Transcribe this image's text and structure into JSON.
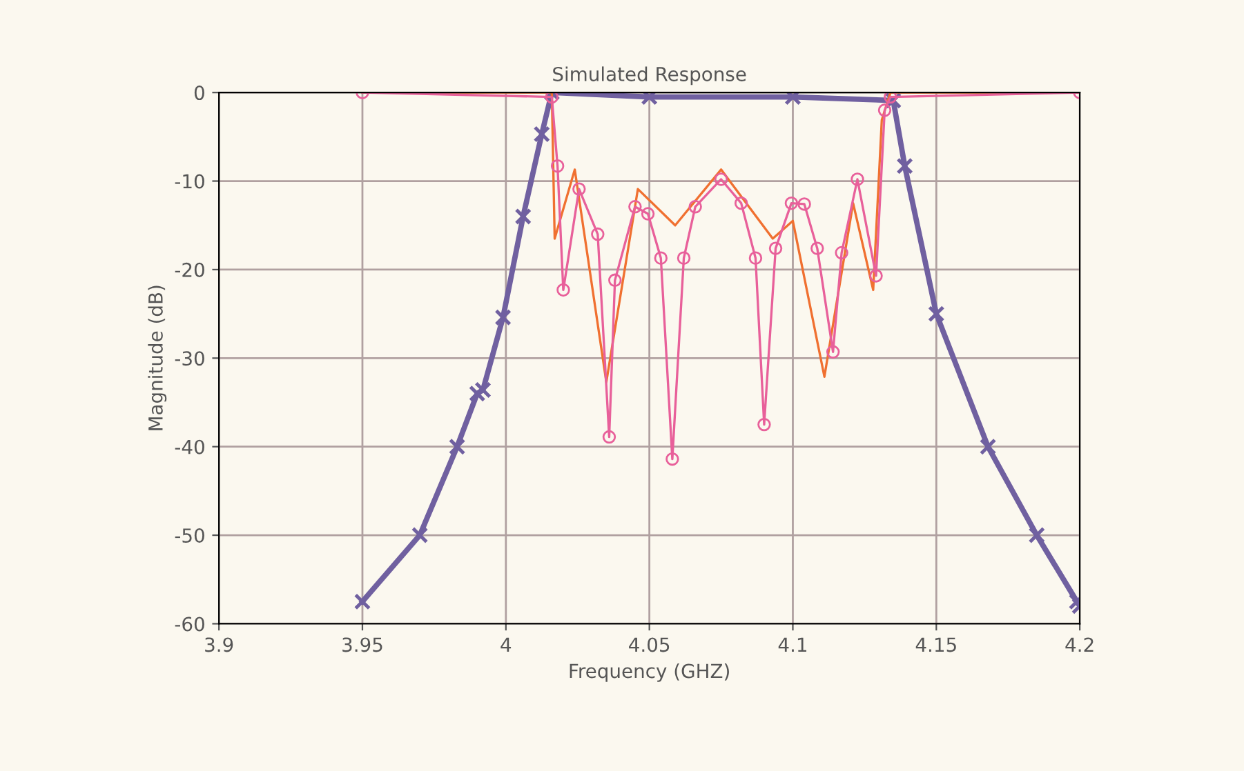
{
  "chart_data": {
    "type": "line",
    "title": "Simulated Response",
    "xlabel": "Frequency (GHZ)",
    "ylabel": "Magnitude (dB)",
    "xlim": [
      3.9,
      4.2
    ],
    "xticks": [
      3.9,
      3.95,
      4,
      4.05,
      4.1,
      4.15,
      4.2
    ],
    "ylim": [
      -60,
      0
    ],
    "yticks": [
      0,
      -10,
      -20,
      -30,
      -40,
      -50,
      -60
    ],
    "grid": true,
    "series": [
      {
        "color": "#7060a0",
        "marker": "cross",
        "x": [
          3.95,
          3.97,
          3.983,
          3.99,
          3.992,
          3.999,
          4.006,
          4.0125,
          4.016,
          4.05,
          4.1,
          4.135,
          4.139,
          4.15,
          4.168,
          4.185,
          4.199,
          4.2
        ],
        "values": [
          -57.5,
          -50,
          -40,
          -34,
          -33.6,
          -25.4,
          -14,
          -4.7,
          0,
          -0.5,
          -0.5,
          -0.9,
          -8.3,
          -25,
          -40,
          -50,
          -57.5,
          -58
        ]
      },
      {
        "color": "#f07030",
        "marker": "none",
        "x": [
          3.95,
          4.016,
          4.017,
          4.024,
          4.035,
          4.046,
          4.059,
          4.075,
          4.093,
          4.1,
          4.111,
          4.121,
          4.128,
          4.131,
          4.134,
          4.2
        ],
        "values": [
          0,
          0,
          -16.5,
          -8.7,
          -32.7,
          -10.9,
          -15,
          -8.7,
          -16.5,
          -14.5,
          -32.1,
          -12.5,
          -22.3,
          -3.1,
          0,
          0
        ]
      },
      {
        "color": "#e8609a",
        "marker": "circle",
        "x": [
          3.95,
          4.016,
          4.018,
          4.02,
          4.0255,
          4.032,
          4.036,
          4.038,
          4.045,
          4.0495,
          4.054,
          4.058,
          4.062,
          4.066,
          4.075,
          4.082,
          4.087,
          4.09,
          4.094,
          4.0995,
          4.104,
          4.1085,
          4.114,
          4.117,
          4.1225,
          4.129,
          4.132,
          4.134,
          4.2
        ],
        "values": [
          0,
          -0.5,
          -8.3,
          -22.3,
          -10.9,
          -16,
          -38.9,
          -21.2,
          -12.9,
          -13.7,
          -18.7,
          -41.4,
          -18.7,
          -12.9,
          -9.8,
          -12.5,
          -18.7,
          -37.5,
          -17.6,
          -12.5,
          -12.6,
          -17.6,
          -29.3,
          -18.1,
          -9.8,
          -20.7,
          -2,
          -0.5,
          0
        ]
      }
    ]
  }
}
